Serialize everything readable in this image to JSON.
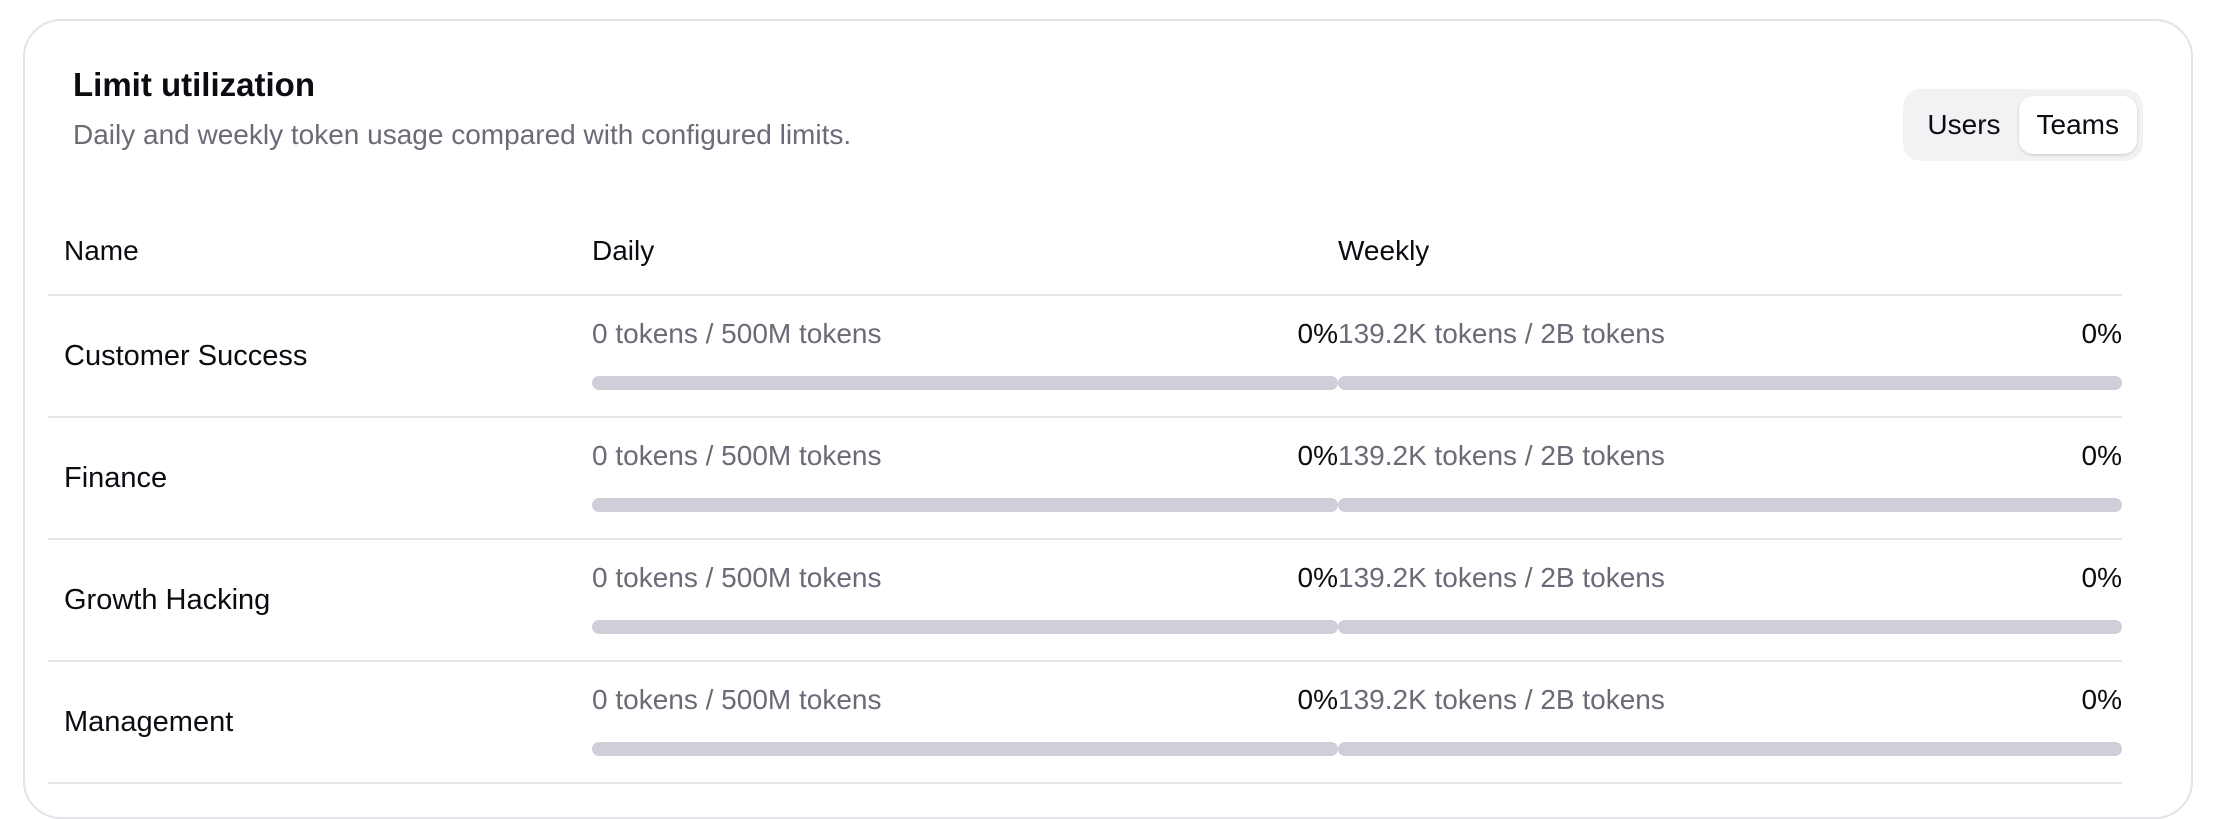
{
  "card": {
    "title": "Limit utilization",
    "subtitle": "Daily and weekly token usage compared with configured limits."
  },
  "toggle": {
    "options": [
      "Users",
      "Teams"
    ],
    "selected": "Teams"
  },
  "table": {
    "headers": {
      "name": "Name",
      "daily": "Daily",
      "weekly": "Weekly"
    },
    "rows": [
      {
        "name": "Customer Success",
        "daily": {
          "usage": "0 tokens / 500M tokens",
          "percent": "0%",
          "fill_fraction": 0
        },
        "weekly": {
          "usage": "139.2K tokens / 2B tokens",
          "percent": "0%",
          "fill_fraction": 0
        }
      },
      {
        "name": "Finance",
        "daily": {
          "usage": "0 tokens / 500M tokens",
          "percent": "0%",
          "fill_fraction": 0
        },
        "weekly": {
          "usage": "139.2K tokens / 2B tokens",
          "percent": "0%",
          "fill_fraction": 0
        }
      },
      {
        "name": "Growth Hacking",
        "daily": {
          "usage": "0 tokens / 500M tokens",
          "percent": "0%",
          "fill_fraction": 0
        },
        "weekly": {
          "usage": "139.2K tokens / 2B tokens",
          "percent": "0%",
          "fill_fraction": 0
        }
      },
      {
        "name": "Management",
        "daily": {
          "usage": "0 tokens / 500M tokens",
          "percent": "0%",
          "fill_fraction": 0
        },
        "weekly": {
          "usage": "139.2K tokens / 2B tokens",
          "percent": "0%",
          "fill_fraction": 0
        }
      }
    ]
  },
  "colors": {
    "track": "#cfcfd9",
    "fill": "#4b4bd6",
    "muted_text": "#6b6b78"
  }
}
